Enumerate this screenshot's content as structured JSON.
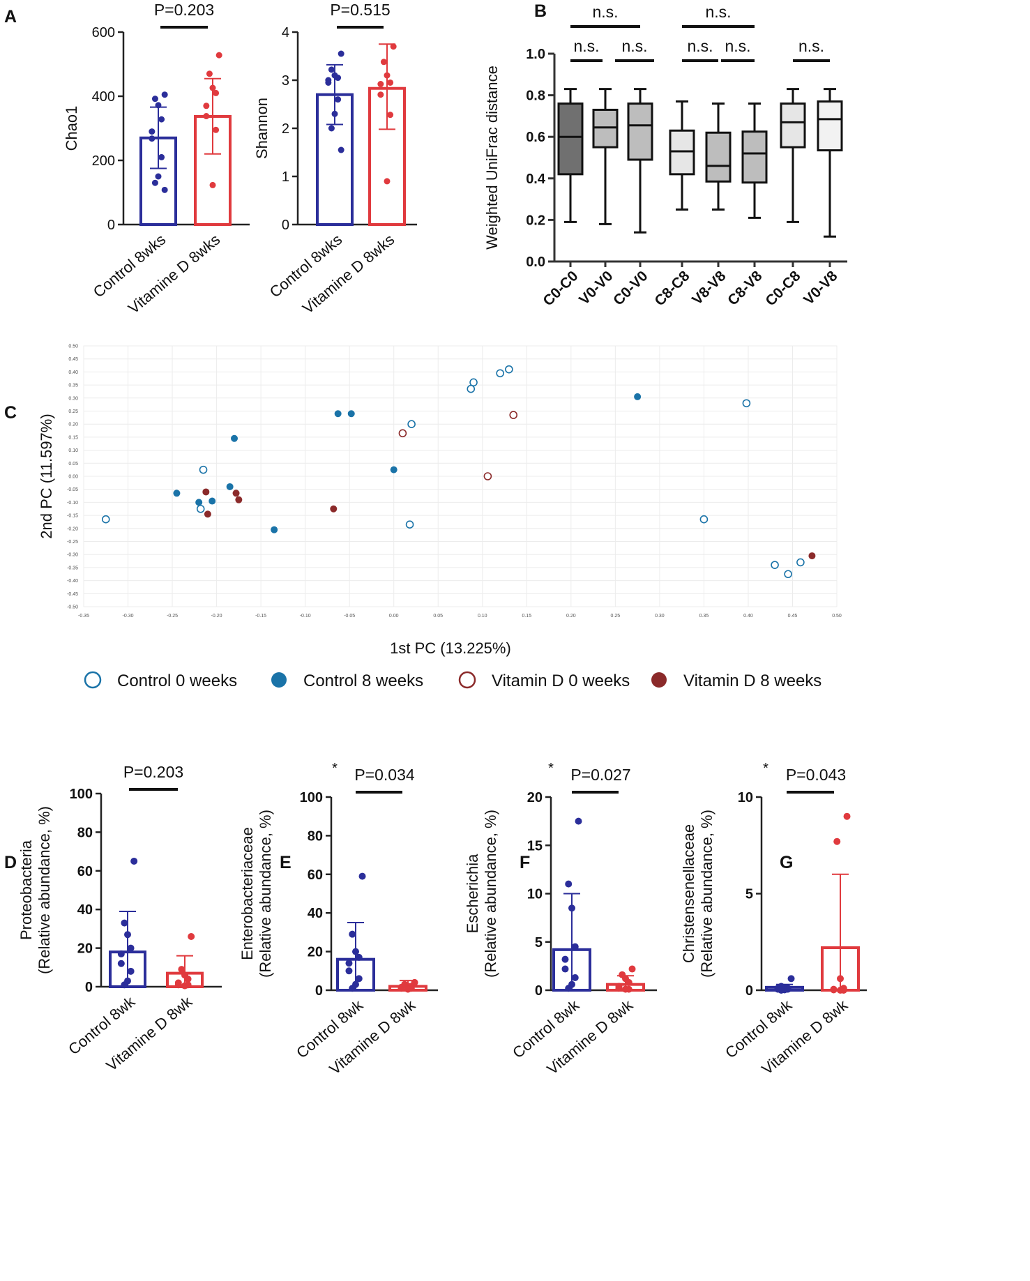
{
  "colors": {
    "control": "#2b2e9a",
    "vitd": "#e03a3e",
    "ctrl_pca": "#1a73a8",
    "vitd_pca": "#8b2a2a",
    "box_dark": "#707070",
    "box_mid": "#bdbdbd",
    "box_light": "#e6e6e6",
    "box_white": "#f2f2f2"
  },
  "panels": {
    "A": "A",
    "B": "B",
    "C": "C",
    "D": "D",
    "E": "E",
    "F": "F",
    "G": "G"
  },
  "chart_data": [
    {
      "id": "A1",
      "type": "bar",
      "ylabel": "Chao1",
      "ylim": [
        0,
        600
      ],
      "yticks": [
        "0",
        "200",
        "400",
        "600"
      ],
      "categories": [
        "Control 8wks",
        "Vitamine D 8wks"
      ],
      "bars": [
        270,
        337
      ],
      "err": [
        [
          175,
          366
        ],
        [
          220,
          455
        ]
      ],
      "p": "P=0.203",
      "star": "",
      "points": [
        [
          405,
          392,
          372,
          328,
          290,
          268,
          210,
          150,
          130,
          108
        ],
        [
          528,
          470,
          426,
          410,
          370,
          338,
          295,
          123
        ]
      ]
    },
    {
      "id": "A2",
      "type": "bar",
      "ylabel": "Shannon",
      "ylim": [
        0,
        4
      ],
      "yticks": [
        "0",
        "1",
        "2",
        "3",
        "4"
      ],
      "categories": [
        "Control 8wks",
        "Vitamine D 8wks"
      ],
      "bars": [
        2.7,
        2.83
      ],
      "err": [
        [
          2.08,
          3.32
        ],
        [
          1.98,
          3.75
        ]
      ],
      "p": "P=0.515",
      "star": "",
      "points": [
        [
          3.55,
          3.22,
          3.1,
          3.05,
          3.0,
          2.95,
          2.6,
          2.3,
          2.0,
          1.55
        ],
        [
          3.7,
          3.38,
          3.1,
          2.95,
          2.92,
          2.7,
          2.28,
          0.9
        ]
      ]
    },
    {
      "id": "B",
      "type": "box",
      "ylabel": "Weighted UniFrac distance",
      "ylim": [
        0,
        1.0
      ],
      "yticks": [
        "0.0",
        "0.2",
        "0.4",
        "0.6",
        "0.8",
        "1.0"
      ],
      "categories": [
        "C0-C0",
        "V0-V0",
        "C0-V0",
        "C8-C8",
        "V8-V8",
        "C8-V8",
        "C0-C8",
        "V0-V8"
      ],
      "boxes": [
        {
          "min": 0.19,
          "q1": 0.42,
          "median": 0.6,
          "q3": 0.76,
          "max": 0.83,
          "fill": "box_dark"
        },
        {
          "min": 0.18,
          "q1": 0.55,
          "median": 0.645,
          "q3": 0.73,
          "max": 0.83,
          "fill": "box_mid"
        },
        {
          "min": 0.14,
          "q1": 0.49,
          "median": 0.655,
          "q3": 0.76,
          "max": 0.83,
          "fill": "box_mid"
        },
        {
          "min": 0.25,
          "q1": 0.42,
          "median": 0.53,
          "q3": 0.63,
          "max": 0.77,
          "fill": "box_light"
        },
        {
          "min": 0.25,
          "q1": 0.385,
          "median": 0.46,
          "q3": 0.62,
          "max": 0.76,
          "fill": "box_mid"
        },
        {
          "min": 0.21,
          "q1": 0.38,
          "median": 0.52,
          "q3": 0.625,
          "max": 0.76,
          "fill": "box_mid"
        },
        {
          "min": 0.19,
          "q1": 0.55,
          "median": 0.67,
          "q3": 0.76,
          "max": 0.83,
          "fill": "box_light"
        },
        {
          "min": 0.12,
          "q1": 0.535,
          "median": 0.685,
          "q3": 0.77,
          "max": 0.83,
          "fill": "box_white"
        }
      ],
      "brackets": [
        {
          "from": 0,
          "to": 2,
          "level": 2,
          "label": "n.s."
        },
        {
          "from": 3,
          "to": 5,
          "level": 2,
          "label": "n.s."
        },
        {
          "from": 0,
          "to": 1,
          "level": 1,
          "label": "n.s."
        },
        {
          "from": 1,
          "to": 2,
          "level": 1,
          "label": "n.s."
        },
        {
          "from": 3,
          "to": 4,
          "level": 1,
          "label": "n.s."
        },
        {
          "from": 4,
          "to": 5,
          "level": 1,
          "label": "n.s."
        },
        {
          "from": 6,
          "to": 7,
          "level": 1,
          "label": "n.s."
        }
      ]
    },
    {
      "id": "C",
      "type": "scatter",
      "xlabel": "1st PC (13.225%)",
      "ylabel": "2nd PC (11.597%)",
      "xlim": [
        -0.35,
        0.5
      ],
      "ylim": [
        -0.5,
        0.5
      ],
      "xticks": [
        "-0.35",
        "-0.30",
        "-0.25",
        "-0.20",
        "-0.15",
        "-0.10",
        "-0.05",
        "0.00",
        "0.05",
        "0.10",
        "0.15",
        "0.20",
        "0.25",
        "0.30",
        "0.35",
        "0.40",
        "0.45",
        "0.50"
      ],
      "yticks": [
        "0.50",
        "0.45",
        "0.40",
        "0.35",
        "0.30",
        "0.25",
        "0.20",
        "0.15",
        "0.10",
        "0.05",
        "0.00",
        "-0.05",
        "-0.10",
        "-0.15",
        "-0.20",
        "-0.25",
        "-0.30",
        "-0.35",
        "-0.40",
        "-0.45",
        "-0.50"
      ],
      "series": [
        {
          "name": "Control 0 weeks",
          "color": "ctrl_pca",
          "filled": false,
          "x": [
            -0.325,
            -0.215,
            -0.218,
            0.02,
            0.09,
            0.087,
            0.12,
            0.13,
            0.018,
            0.35,
            0.398,
            0.43,
            0.445,
            0.459
          ],
          "y": [
            -0.165,
            0.025,
            -0.125,
            0.2,
            0.36,
            0.335,
            0.395,
            0.41,
            -0.185,
            -0.165,
            0.28,
            -0.34,
            -0.375,
            -0.33
          ]
        },
        {
          "name": "Control 8 weeks",
          "color": "ctrl_pca",
          "filled": true,
          "x": [
            -0.245,
            -0.22,
            -0.205,
            -0.185,
            -0.18,
            -0.135,
            -0.063,
            -0.048,
            0.0,
            0.275
          ],
          "y": [
            -0.065,
            -0.1,
            -0.095,
            -0.04,
            0.145,
            -0.205,
            0.24,
            0.24,
            0.025,
            0.305
          ]
        },
        {
          "name": "Vitamin D 0 weeks",
          "color": "vitd_pca",
          "filled": false,
          "x": [
            0.01,
            0.135,
            0.106
          ],
          "y": [
            0.165,
            0.235,
            0.0
          ]
        },
        {
          "name": "Vitamin D 8 weeks",
          "color": "vitd_pca",
          "filled": true,
          "x": [
            -0.212,
            -0.21,
            -0.178,
            -0.175,
            -0.068,
            0.472
          ],
          "y": [
            -0.06,
            -0.145,
            -0.065,
            -0.09,
            -0.125,
            -0.305
          ]
        }
      ]
    },
    {
      "id": "D",
      "type": "bar",
      "ylabel": "Proteobacteria",
      "ylabel2": "(Relative abundance, %)",
      "ylim": [
        0,
        100
      ],
      "yticks": [
        "0",
        "20",
        "40",
        "60",
        "80",
        "100"
      ],
      "categories": [
        "Control 8wk",
        "Vitamine D 8wk"
      ],
      "bars": [
        18,
        7
      ],
      "err": [
        [
          0,
          39
        ],
        [
          0,
          16
        ]
      ],
      "p": "P=0.203",
      "star": "",
      "points": [
        [
          65,
          33,
          27,
          20,
          17,
          12,
          8,
          3,
          1
        ],
        [
          26,
          9,
          6,
          4,
          2,
          1,
          1,
          0.5
        ]
      ]
    },
    {
      "id": "E",
      "type": "bar",
      "ylabel": "Enterobacteriaceae",
      "ylabel2": "(Relative abundance, %)",
      "ylim": [
        0,
        100
      ],
      "yticks": [
        "0",
        "20",
        "40",
        "60",
        "80",
        "100"
      ],
      "categories": [
        "Control 8wk",
        "Vitamine D 8wk"
      ],
      "bars": [
        16,
        2
      ],
      "err": [
        [
          0,
          35
        ],
        [
          0,
          5
        ]
      ],
      "p": "P=0.034",
      "star": "*",
      "points": [
        [
          59,
          29,
          20,
          17,
          14,
          10,
          6,
          3,
          1
        ],
        [
          4,
          3,
          2,
          2,
          1.5,
          1,
          1,
          0.5
        ]
      ]
    },
    {
      "id": "F",
      "type": "bar",
      "ylabel": "Escherichia",
      "ylabel2": "(Relative abundance, %)",
      "ylim": [
        0,
        20
      ],
      "yticks": [
        "0",
        "5",
        "10",
        "15",
        "20"
      ],
      "categories": [
        "Control 8wk",
        "Vitamine D 8wk"
      ],
      "bars": [
        4.2,
        0.6
      ],
      "err": [
        [
          0,
          10
        ],
        [
          0,
          1.5
        ]
      ],
      "p": "P=0.027",
      "star": "*",
      "points": [
        [
          17.5,
          11,
          8.5,
          4.5,
          3.2,
          2.2,
          1.3,
          0.6,
          0.2
        ],
        [
          2.2,
          1.6,
          1.2,
          0.8,
          0.4,
          0.2,
          0.1,
          0.1
        ]
      ]
    },
    {
      "id": "G",
      "type": "bar",
      "ylabel": "Christensenellaceae",
      "ylabel2": "(Relative abundance, %)",
      "ylim": [
        0,
        10
      ],
      "yticks": [
        "0",
        "5",
        "10"
      ],
      "categories": [
        "Control 8wk",
        "Vitamine D 8wk"
      ],
      "bars": [
        0.15,
        2.2
      ],
      "err": [
        [
          0,
          0.3
        ],
        [
          0,
          6.0
        ]
      ],
      "p": "P=0.043",
      "star": "*",
      "points": [
        [
          0.6,
          0.2,
          0.15,
          0.1,
          0.1,
          0.05,
          0.05,
          0.02,
          0.0
        ],
        [
          9.0,
          7.7,
          0.6,
          0.1,
          0.05,
          0.02,
          0.0,
          0.0
        ]
      ]
    }
  ]
}
